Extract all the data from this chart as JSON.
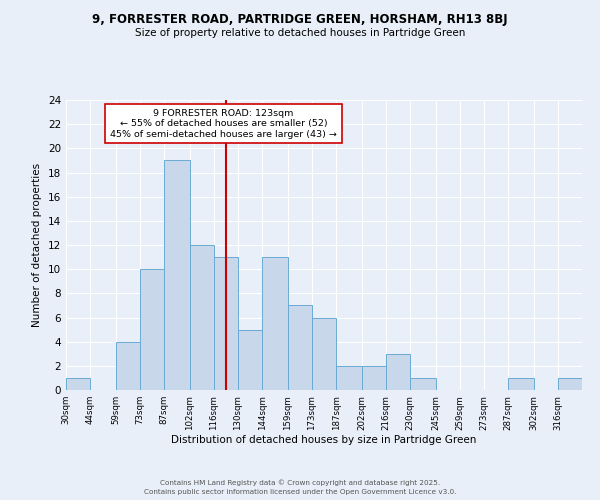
{
  "title": "9, FORRESTER ROAD, PARTRIDGE GREEN, HORSHAM, RH13 8BJ",
  "subtitle": "Size of property relative to detached houses in Partridge Green",
  "xlabel": "Distribution of detached houses by size in Partridge Green",
  "ylabel": "Number of detached properties",
  "bins": [
    30,
    44,
    59,
    73,
    87,
    102,
    116,
    130,
    144,
    159,
    173,
    187,
    202,
    216,
    230,
    245,
    259,
    273,
    287,
    302,
    316
  ],
  "counts": [
    1,
    0,
    4,
    10,
    19,
    12,
    11,
    5,
    11,
    7,
    6,
    2,
    2,
    3,
    1,
    0,
    0,
    0,
    1,
    0,
    1
  ],
  "bar_face_color": "#c8d8ea",
  "bar_edge_color": "#6aaad4",
  "vline_x": 123,
  "vline_color": "#cc0000",
  "annotation_text": "9 FORRESTER ROAD: 123sqm\n← 55% of detached houses are smaller (52)\n45% of semi-detached houses are larger (43) →",
  "annotation_box_color": "white",
  "annotation_box_edge": "#cc0000",
  "bg_color": "#e8eff8",
  "plot_bg_color": "#e8eff8",
  "grid_color": "white",
  "ylim": [
    0,
    24
  ],
  "yticks": [
    0,
    2,
    4,
    6,
    8,
    10,
    12,
    14,
    16,
    18,
    20,
    22,
    24
  ],
  "footer1": "Contains HM Land Registry data © Crown copyright and database right 2025.",
  "footer2": "Contains public sector information licensed under the Open Government Licence v3.0."
}
